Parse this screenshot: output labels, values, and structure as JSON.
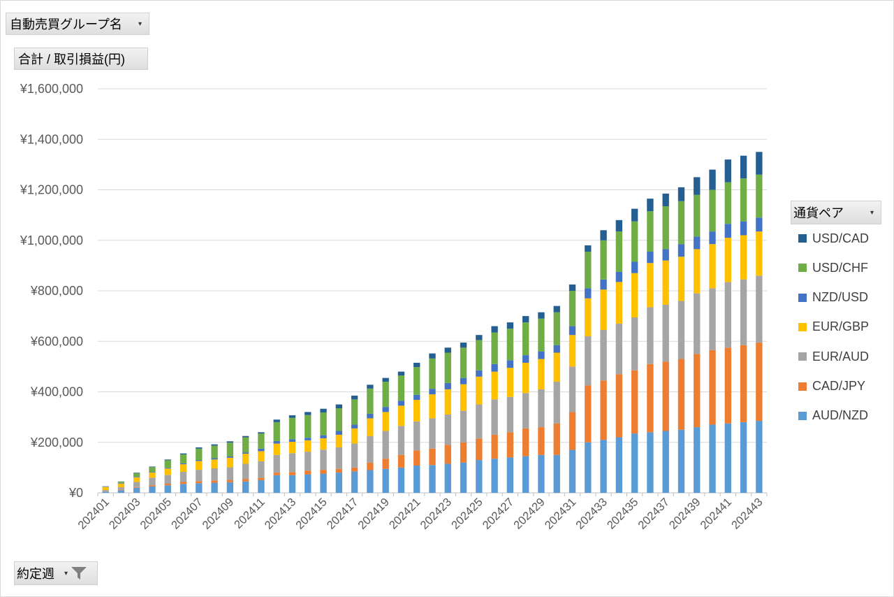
{
  "filters": {
    "group_label": "自動売買グループ名",
    "value_label": "合計 / 取引損益(円)",
    "week_label": "約定週",
    "legend_label": "通貨ペア",
    "dropdown_icon": "dropdown-arrow-icon",
    "filter_icon": "funnel-icon"
  },
  "chart_data": {
    "type": "bar",
    "stacked": true,
    "title": "",
    "xlabel": "約定週",
    "ylabel": "合計 / 取引損益(円)",
    "ylim": [
      0,
      1600000
    ],
    "yticks": [
      "¥0",
      "¥200,000",
      "¥400,000",
      "¥600,000",
      "¥800,000",
      "¥1,000,000",
      "¥1,200,000",
      "¥1,400,000",
      "¥1,600,000"
    ],
    "grid": true,
    "legend_position": "right",
    "categories": [
      "202401",
      "202402",
      "202403",
      "202404",
      "202405",
      "202406",
      "202407",
      "202408",
      "202409",
      "202410",
      "202411",
      "202412",
      "202413",
      "202414",
      "202415",
      "202416",
      "202417",
      "202418",
      "202419",
      "202420",
      "202421",
      "202422",
      "202423",
      "202424",
      "202425",
      "202426",
      "202427",
      "202428",
      "202429",
      "202430",
      "202431",
      "202432",
      "202433",
      "202434",
      "202435",
      "202436",
      "202437",
      "202438",
      "202439",
      "202440",
      "202441",
      "202442",
      "202443"
    ],
    "x_tick_labels": [
      "202401",
      "",
      "202403",
      "",
      "202405",
      "",
      "202407",
      "",
      "202409",
      "",
      "202411",
      "",
      "202413",
      "",
      "202415",
      "",
      "202417",
      "",
      "202419",
      "",
      "202421",
      "",
      "202423",
      "",
      "202425",
      "",
      "202427",
      "",
      "202429",
      "",
      "202431",
      "",
      "202433",
      "",
      "202435",
      "",
      "202437",
      "",
      "202439",
      "",
      "202441",
      "",
      "202443"
    ],
    "series": [
      {
        "name": "AUD/NZD",
        "color": "#5B9BD5",
        "values": [
          5000,
          10000,
          20000,
          25000,
          30000,
          35000,
          38000,
          40000,
          42000,
          45000,
          50000,
          70000,
          70000,
          73000,
          76000,
          80000,
          85000,
          90000,
          95000,
          100000,
          108000,
          110000,
          115000,
          120000,
          130000,
          135000,
          140000,
          145000,
          150000,
          150000,
          170000,
          200000,
          210000,
          220000,
          235000,
          240000,
          245000,
          250000,
          260000,
          270000,
          275000,
          280000,
          285000
        ]
      },
      {
        "name": "CAD/JPY",
        "color": "#ED7D31",
        "values": [
          1000,
          2000,
          3000,
          5000,
          6000,
          8000,
          8000,
          9000,
          9000,
          10000,
          10000,
          10000,
          12000,
          15000,
          15000,
          15000,
          15000,
          30000,
          40000,
          50000,
          60000,
          65000,
          75000,
          80000,
          85000,
          95000,
          100000,
          110000,
          110000,
          125000,
          150000,
          225000,
          235000,
          250000,
          250000,
          270000,
          275000,
          280000,
          290000,
          295000,
          300000,
          305000,
          310000
        ]
      },
      {
        "name": "EUR/AUD",
        "color": "#A5A5A5",
        "values": [
          5000,
          10000,
          20000,
          30000,
          35000,
          40000,
          45000,
          48000,
          50000,
          60000,
          65000,
          70000,
          75000,
          75000,
          80000,
          85000,
          95000,
          105000,
          110000,
          115000,
          115000,
          120000,
          120000,
          125000,
          135000,
          140000,
          140000,
          140000,
          150000,
          165000,
          180000,
          195000,
          200000,
          200000,
          210000,
          225000,
          225000,
          230000,
          240000,
          245000,
          260000,
          260000,
          265000
        ]
      },
      {
        "name": "EUR/GBP",
        "color": "#FFC000",
        "values": [
          12000,
          15000,
          18000,
          20000,
          25000,
          30000,
          35000,
          35000,
          38000,
          40000,
          40000,
          45000,
          45000,
          45000,
          45000,
          50000,
          60000,
          70000,
          75000,
          80000,
          85000,
          95000,
          100000,
          105000,
          110000,
          110000,
          115000,
          120000,
          120000,
          115000,
          125000,
          150000,
          160000,
          165000,
          175000,
          175000,
          175000,
          175000,
          175000,
          175000,
          175000,
          175000,
          175000
        ]
      },
      {
        "name": "NZD/USD",
        "color": "#4472C4",
        "values": [
          1000,
          2000,
          2000,
          2000,
          3000,
          4000,
          4000,
          5000,
          5000,
          5000,
          10000,
          10000,
          10000,
          10000,
          12000,
          15000,
          15000,
          18000,
          20000,
          20000,
          20000,
          22000,
          25000,
          25000,
          25000,
          30000,
          30000,
          30000,
          30000,
          30000,
          35000,
          40000,
          40000,
          40000,
          45000,
          45000,
          45000,
          50000,
          50000,
          50000,
          55000,
          55000,
          55000
        ]
      },
      {
        "name": "USD/CHF",
        "color": "#70AD47",
        "values": [
          1000,
          5000,
          15000,
          20000,
          30000,
          35000,
          45000,
          50000,
          55000,
          60000,
          60000,
          75000,
          85000,
          90000,
          90000,
          90000,
          100000,
          100000,
          100000,
          100000,
          110000,
          120000,
          120000,
          120000,
          120000,
          125000,
          125000,
          130000,
          130000,
          130000,
          140000,
          145000,
          155000,
          160000,
          160000,
          160000,
          170000,
          170000,
          165000,
          165000,
          165000,
          170000,
          170000
        ]
      },
      {
        "name": "USD/CAD",
        "color": "#255E91",
        "values": [
          1000,
          1000,
          2000,
          2000,
          3000,
          4000,
          5000,
          5000,
          5000,
          5000,
          5000,
          10000,
          10000,
          12000,
          15000,
          15000,
          15000,
          15000,
          15000,
          15000,
          17000,
          20000,
          20000,
          20000,
          20000,
          25000,
          25000,
          25000,
          25000,
          25000,
          25000,
          25000,
          40000,
          45000,
          50000,
          50000,
          50000,
          55000,
          70000,
          80000,
          90000,
          90000,
          90000
        ]
      }
    ]
  }
}
